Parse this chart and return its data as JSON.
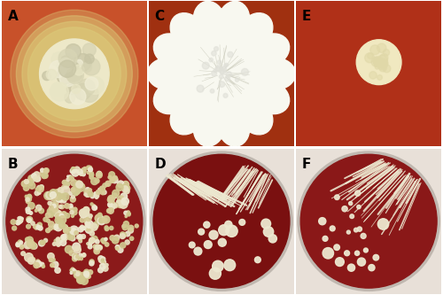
{
  "panels": [
    "A",
    "B",
    "C",
    "D",
    "E",
    "F"
  ],
  "label_fontsize": 11,
  "label_color": "black",
  "label_weight": "bold",
  "agar_bg_A": "#C8512A",
  "agar_bg_C": "#A03010",
  "agar_bg_E": "#B03018",
  "colony_color_A": "#EDE8C8",
  "colony_halo_A": "#DBC878",
  "colony_color_C": "#F8F8F0",
  "colony_color_E": "#F0E8C0",
  "plate_bg_B": "#8B1A1A",
  "plate_bg_D": "#7A1010",
  "plate_bg_F": "#8A1818",
  "plate_rim_color": "#D0C8C0",
  "plate_outer_bg": "#E8E0D8",
  "colony_color_BDF": "#EDE8D0",
  "colony_color_BDF2": "#D8CC98",
  "figwidth": 5.0,
  "figheight": 3.33
}
